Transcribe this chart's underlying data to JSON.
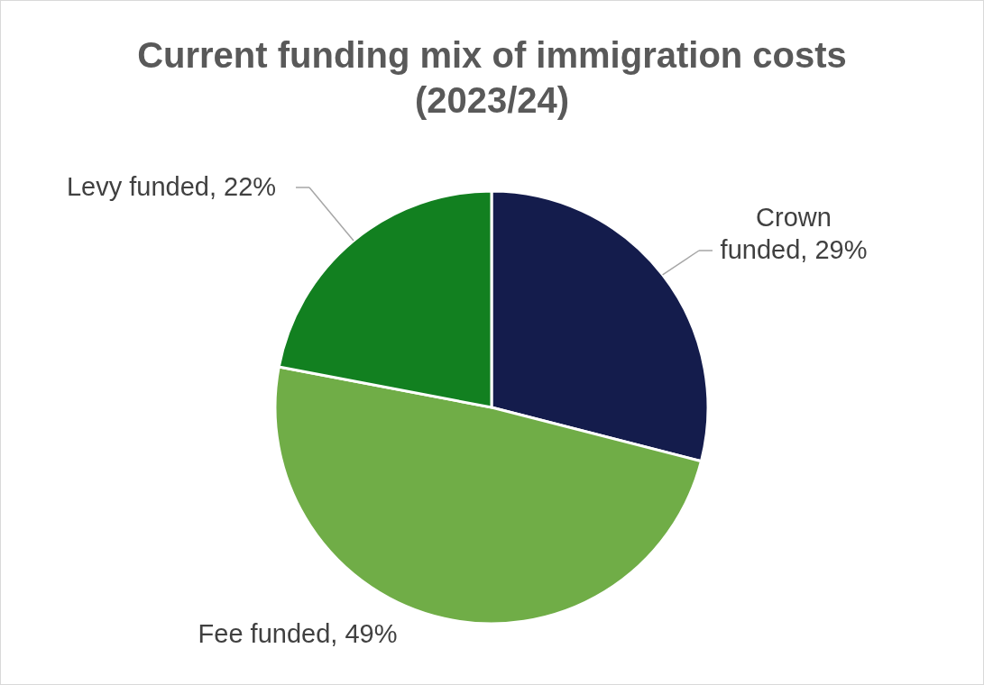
{
  "chart_data": {
    "type": "pie",
    "title": "Current funding mix of immigration costs\n(2023/24)",
    "categories": [
      "Crown funded",
      "Fee funded",
      "Levy funded"
    ],
    "values": [
      29,
      49,
      22
    ],
    "colors": [
      "#141c4c",
      "#70ad47",
      "#128020"
    ],
    "value_labels": [
      "29%",
      "49%",
      "22%"
    ],
    "legend": false
  }
}
